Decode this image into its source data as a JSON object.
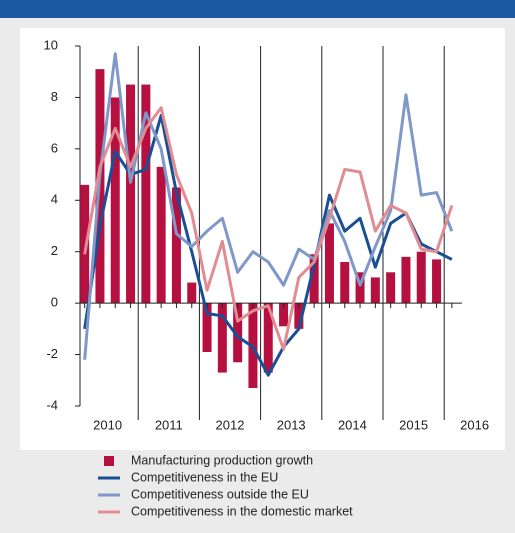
{
  "chart_data": {
    "type": "bar_line",
    "years": [
      "2010",
      "2011",
      "2012",
      "2013",
      "2014",
      "2015",
      "2016"
    ],
    "ylim": [
      -4,
      10
    ],
    "yticks": [
      -4,
      -2,
      0,
      2,
      4,
      6,
      8,
      10
    ],
    "series": [
      {
        "name": "Manufacturing production growth",
        "kind": "bar",
        "color": "#b5103f",
        "values": [
          4.6,
          9.1,
          8.0,
          8.5,
          8.5,
          5.3,
          4.5,
          0.8,
          -1.9,
          -2.7,
          -2.3,
          -3.3,
          -2.7,
          -0.9,
          -1.0,
          1.9,
          3.1,
          1.6,
          1.2,
          1.0,
          1.2,
          1.8,
          2.0,
          1.7,
          null
        ]
      },
      {
        "name": "Competitiveness in the EU",
        "kind": "line",
        "color": "#1a4f94",
        "values": [
          -1.0,
          3.0,
          5.9,
          5.0,
          5.2,
          7.3,
          4.3,
          2.0,
          -0.4,
          -0.5,
          -1.3,
          -1.7,
          -2.8,
          -1.7,
          -1.0,
          1.5,
          4.2,
          2.8,
          3.3,
          1.4,
          3.1,
          3.5,
          2.3,
          2.0,
          1.7
        ]
      },
      {
        "name": "Competitiveness outside the EU",
        "kind": "line",
        "color": "#7f98c9",
        "values": [
          -2.2,
          5.0,
          9.7,
          4.7,
          7.4,
          6.0,
          2.7,
          2.2,
          2.8,
          3.3,
          1.2,
          2.0,
          1.6,
          0.7,
          2.1,
          1.7,
          3.6,
          2.4,
          0.7,
          2.2,
          3.6,
          8.1,
          4.2,
          4.3,
          2.8
        ]
      },
      {
        "name": "Competitiveness in the domestic market",
        "kind": "line",
        "color": "#e08c92",
        "values": [
          1.9,
          5.3,
          6.8,
          5.3,
          6.8,
          7.6,
          5.0,
          3.5,
          0.5,
          2.4,
          -0.7,
          -0.3,
          -0.1,
          -1.8,
          1.0,
          1.6,
          3.3,
          5.2,
          5.1,
          2.8,
          3.8,
          3.5,
          2.1,
          2.0,
          3.8
        ]
      }
    ]
  }
}
